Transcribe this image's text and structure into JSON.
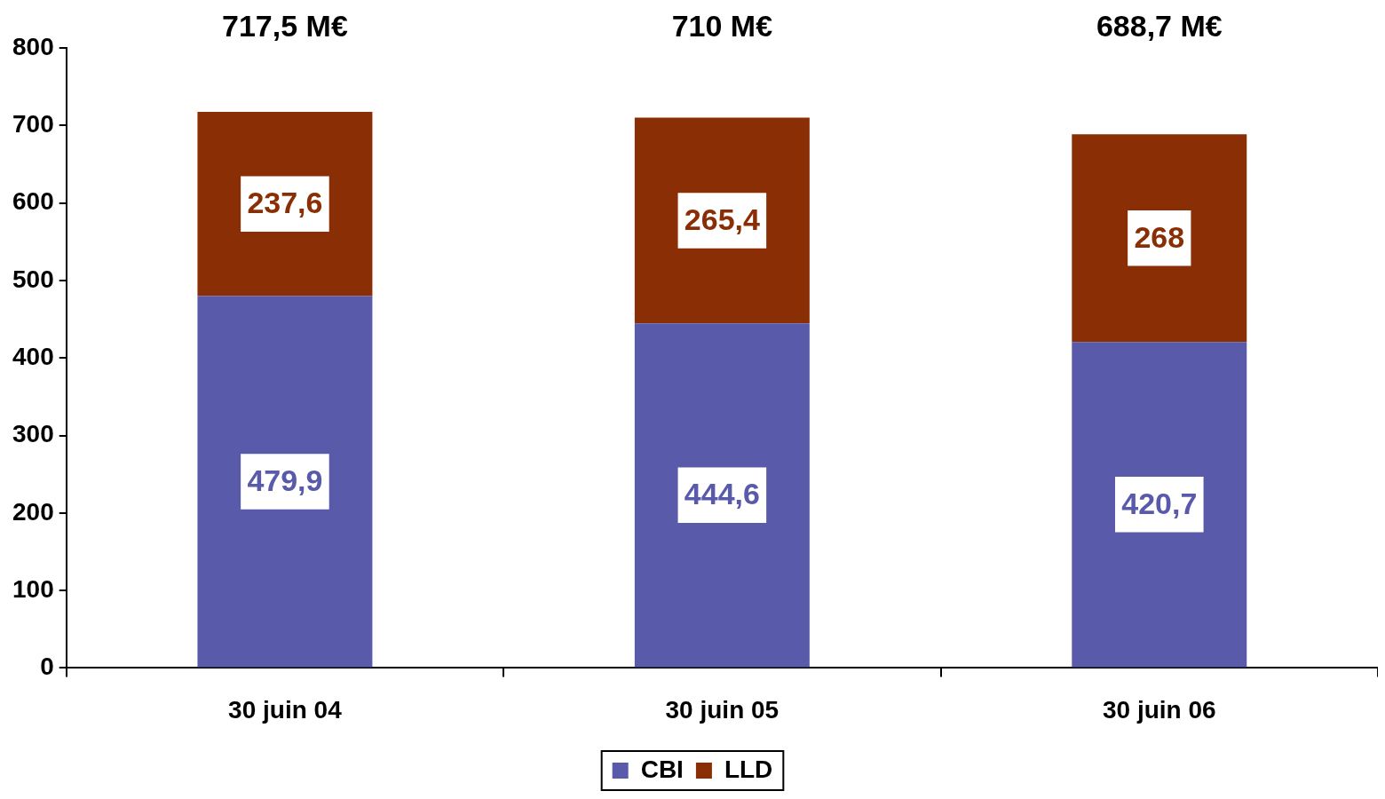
{
  "chart_data": {
    "type": "bar",
    "stacked": true,
    "categories": [
      "30 juin 04",
      "30 juin 05",
      "30 juin 06"
    ],
    "series": [
      {
        "name": "CBI",
        "color": "#5a5aaa",
        "values": [
          479.9,
          444.6,
          420.7
        ],
        "value_labels": [
          "479,9",
          "444,6",
          "420,7"
        ]
      },
      {
        "name": "LLD",
        "color": "#8a2e05",
        "values": [
          237.6,
          265.4,
          268
        ],
        "value_labels": [
          "237,6",
          "265,4",
          "268"
        ]
      }
    ],
    "totals": [
      "717,5 M€",
      "710 M€",
      "688,7 M€"
    ],
    "ylim": [
      0,
      800
    ],
    "yticks": [
      0,
      100,
      200,
      300,
      400,
      500,
      600,
      700,
      800
    ],
    "grid": false,
    "legend": "bottom"
  }
}
